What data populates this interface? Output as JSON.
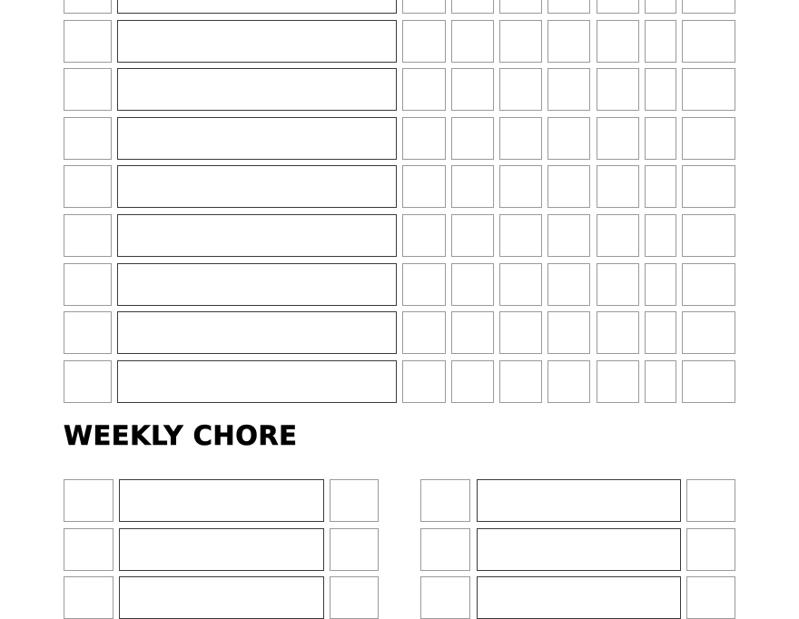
{
  "daily_chart": {
    "rows_visible": 9,
    "day_checkbox_columns": 6,
    "has_total_column": true
  },
  "weekly_chore": {
    "heading": "WEEKLY CHORE",
    "columns": 2,
    "rows_visible": 3
  },
  "colors": {
    "text": "#000000",
    "wide_box_border": "#3a3a3a",
    "small_box_border": "#9a9a9a",
    "background": "#ffffff"
  }
}
